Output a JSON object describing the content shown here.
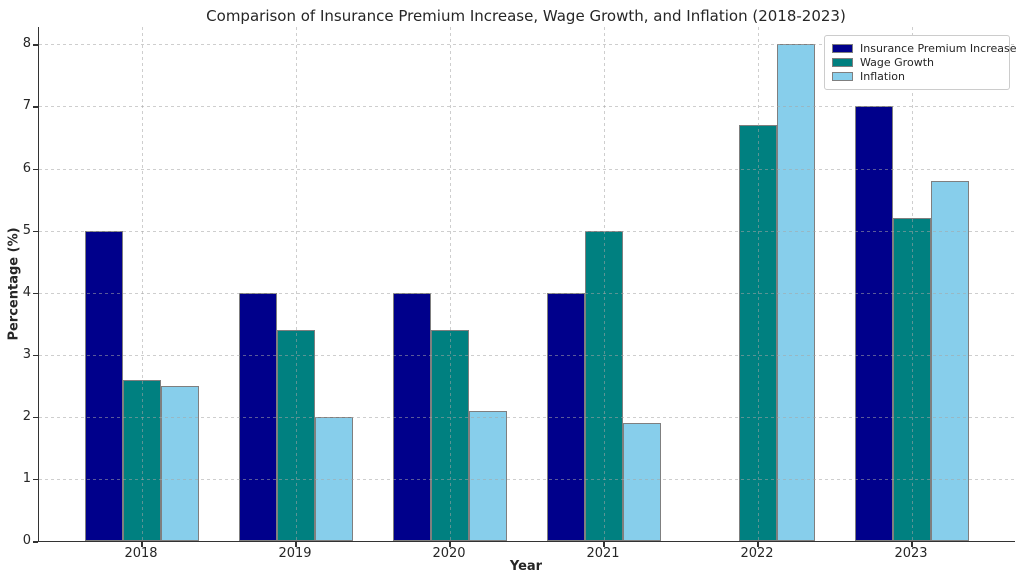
{
  "figure": {
    "background": "#ffffff",
    "text_color": "#262626",
    "spine_color": "#333333",
    "grid_color": "#c9c9c9",
    "bar_edge_color": "#7f7f7f"
  },
  "chart_data": {
    "type": "bar",
    "title": "Comparison of Insurance Premium Increase, Wage Growth, and Inflation (2018-2023)",
    "xlabel": "Year",
    "ylabel": "Percentage (%)",
    "categories": [
      "2018",
      "2019",
      "2020",
      "2021",
      "2022",
      "2023"
    ],
    "series": [
      {
        "name": "Insurance Premium Increase",
        "color": "#00008B",
        "values": [
          5.0,
          4.0,
          4.0,
          4.0,
          0.0,
          7.0
        ]
      },
      {
        "name": "Wage Growth",
        "color": "#008080",
        "values": [
          2.6,
          3.4,
          3.4,
          5.0,
          6.7,
          5.2
        ]
      },
      {
        "name": "Inflation",
        "color": "#87CEEB",
        "values": [
          2.5,
          2.0,
          2.1,
          1.9,
          8.0,
          5.8
        ]
      }
    ],
    "y_ticks": [
      0,
      1,
      2,
      3,
      4,
      5,
      6,
      7,
      8
    ],
    "ylim": [
      0,
      8.28
    ],
    "grid": "dashed, horizontal and vertical, drawn above bars",
    "legend_position": "upper right",
    "legend_border": true
  }
}
